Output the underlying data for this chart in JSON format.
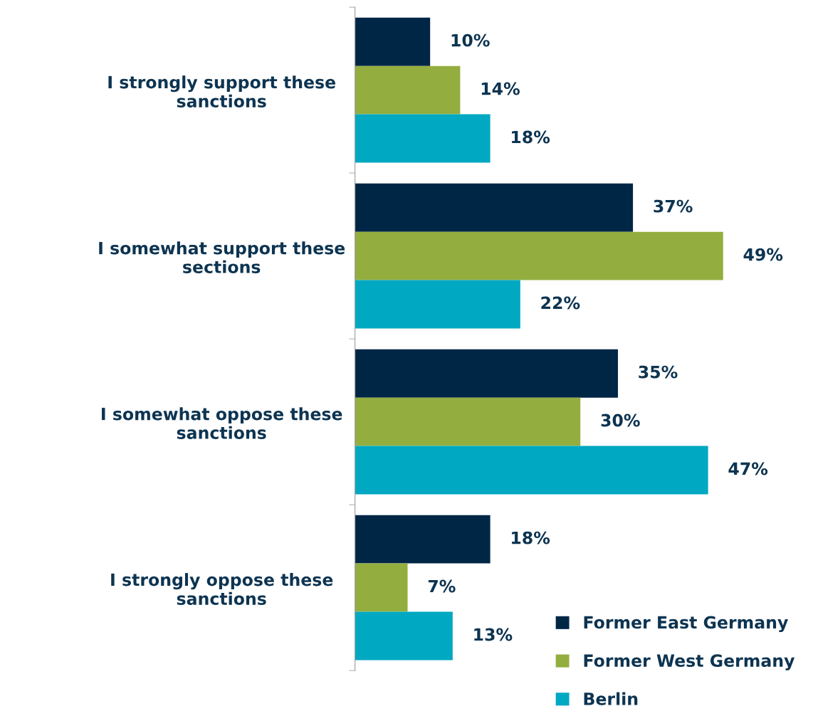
{
  "chart_data": {
    "type": "bar",
    "orientation": "horizontal",
    "legend": "bottom right",
    "grid": false,
    "categories": [
      "I strongly support these\nsanctions",
      "I somewhat support these\nsections",
      "I somewhat oppose these\nsanctions",
      "I strongly oppose these\nsanctions"
    ],
    "series": [
      {
        "name": "Former East Germany",
        "color": "#002646",
        "values": [
          10,
          37,
          35,
          18
        ],
        "value_labels": [
          "10%",
          "37%",
          "35%",
          "18%"
        ]
      },
      {
        "name": "Former West Germany",
        "color": "#93ae3f",
        "values": [
          14,
          49,
          30,
          7
        ],
        "value_labels": [
          "14%",
          "49%",
          "30%",
          "7%"
        ]
      },
      {
        "name": "Berlin",
        "color": "#00a8c1",
        "values": [
          18,
          22,
          47,
          13
        ],
        "value_labels": [
          "18%",
          "22%",
          "47%",
          "13%"
        ]
      }
    ]
  }
}
